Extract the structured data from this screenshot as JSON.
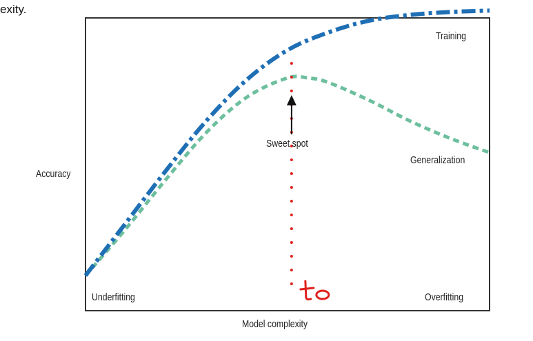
{
  "page": {
    "clipped_text": "exity."
  },
  "chart_data": {
    "type": "line",
    "title": "",
    "xlabel": "Model complexity",
    "ylabel": "Accuracy",
    "xlim": [
      0,
      10
    ],
    "ylim": [
      0,
      10
    ],
    "grid": false,
    "series": [
      {
        "name": "Training",
        "style": "dash-dot",
        "color": "#1f6fb5",
        "x": [
          0,
          1,
          2,
          3,
          4,
          5,
          6,
          7,
          8,
          9,
          10
        ],
        "y": [
          1.2,
          3.0,
          4.8,
          6.5,
          7.9,
          8.9,
          9.5,
          9.9,
          10.1,
          10.2,
          10.25
        ]
      },
      {
        "name": "Generalization",
        "style": "dashed",
        "color": "#6dbf9e",
        "x": [
          0,
          1,
          2,
          3,
          4,
          5,
          5.5,
          6,
          7,
          8,
          9,
          10
        ],
        "y": [
          1.2,
          2.8,
          4.5,
          6.1,
          7.3,
          7.95,
          7.95,
          7.8,
          7.2,
          6.5,
          5.9,
          5.4
        ]
      }
    ],
    "annotations": {
      "sweet_spot": {
        "text": "Sweet spot",
        "x": 5.1
      },
      "underfitting": "Underfitting",
      "overfitting": "Overfitting",
      "training_label": "Training",
      "generalization_label": "Generalization",
      "handwritten_marker": {
        "text": "to",
        "x": 5.1,
        "color": "#e0201b"
      }
    }
  }
}
